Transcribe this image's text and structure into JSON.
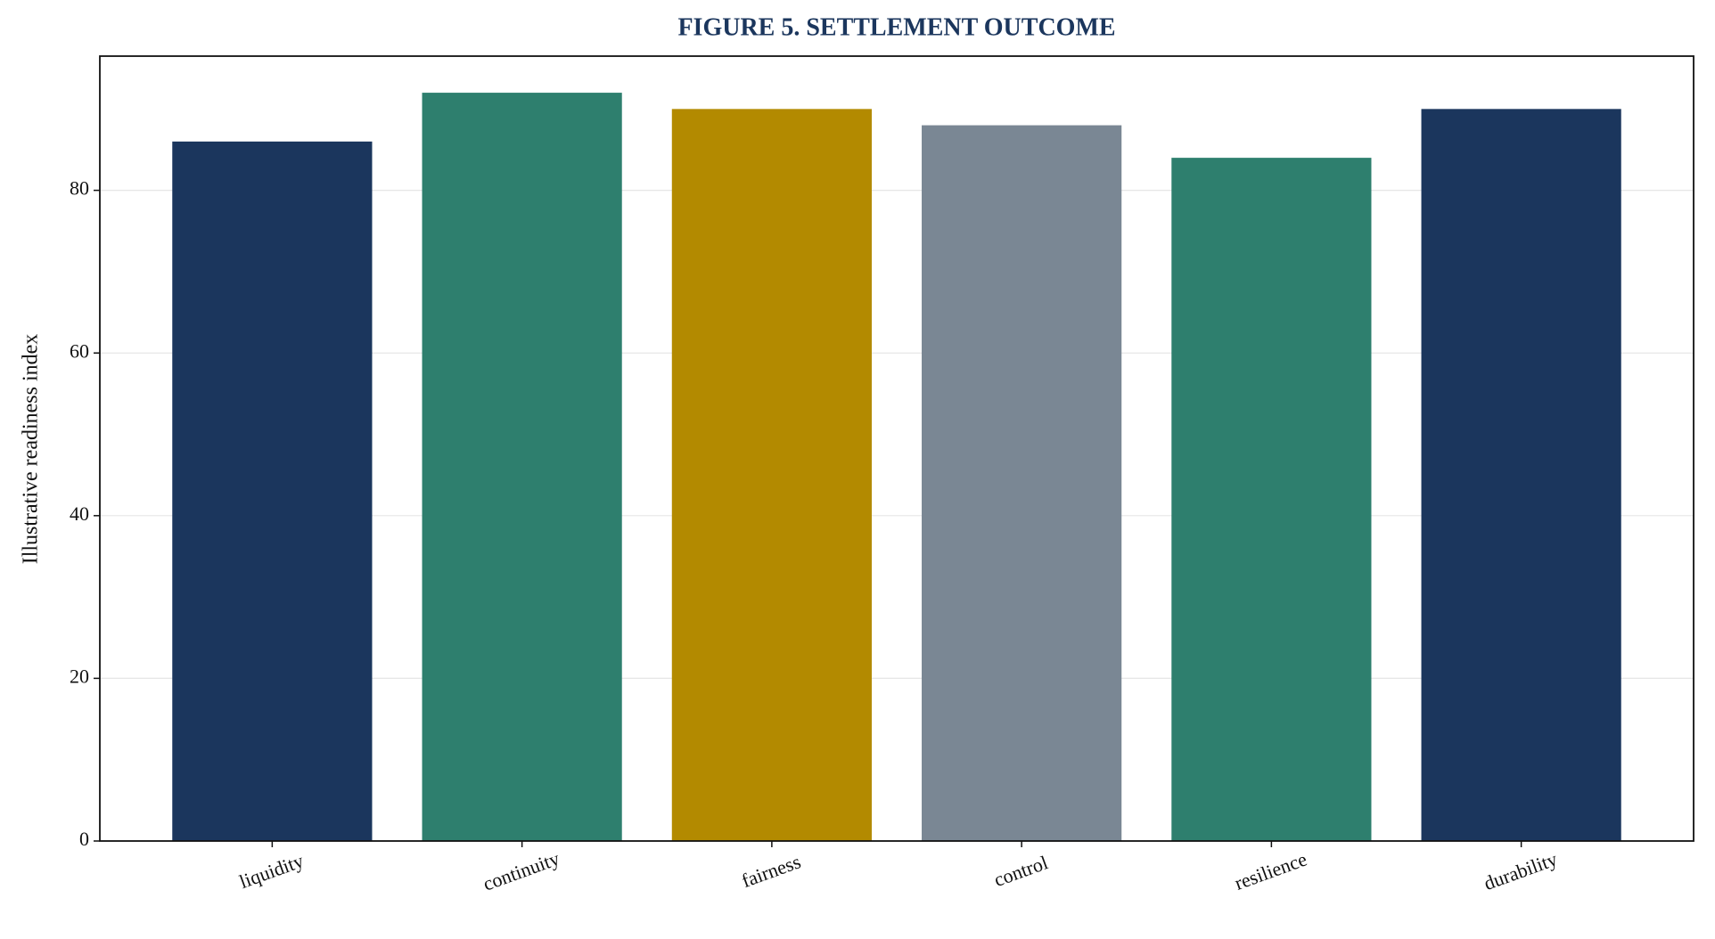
{
  "chart_data": {
    "type": "bar",
    "title": "FIGURE 5. SETTLEMENT OUTCOME",
    "y_label": "Illustrative readiness index",
    "categories": [
      "liquidity",
      "continuity",
      "fairness",
      "control",
      "resilience",
      "durability"
    ],
    "values": [
      86,
      92,
      90,
      88,
      84,
      90
    ],
    "colors": [
      "#1b365d",
      "#2e7f6e",
      "#b38a00",
      "#7a8794",
      "#2e7f6e",
      "#1b365d"
    ],
    "ylim": [
      0,
      96.5
    ],
    "yticks": [
      0,
      20,
      40,
      60,
      80
    ],
    "grid": true
  }
}
